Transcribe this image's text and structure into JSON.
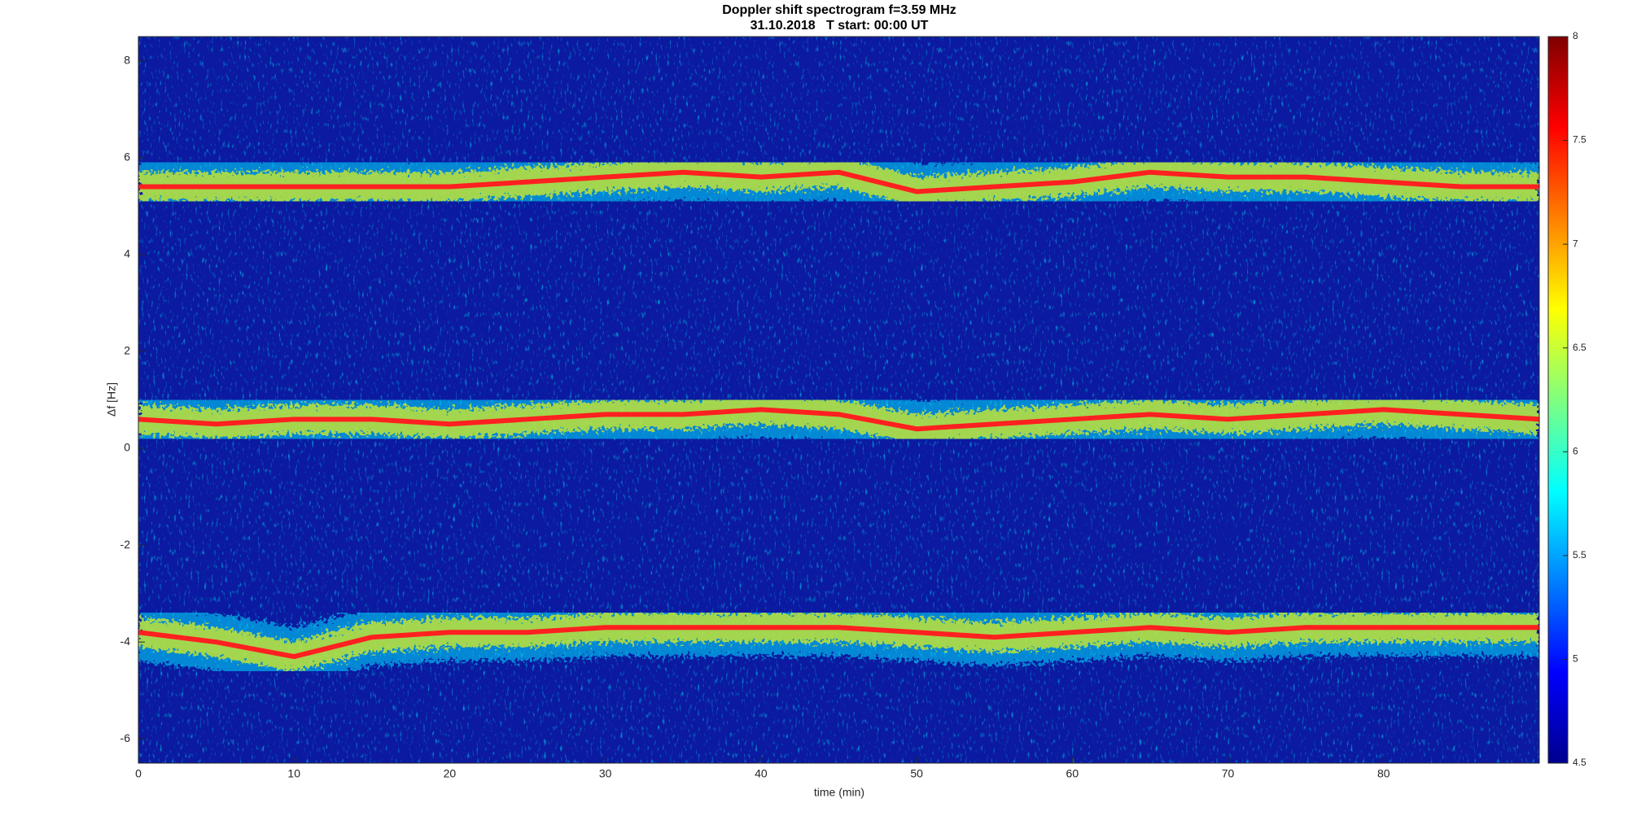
{
  "chart_data": {
    "type": "spectrogram",
    "title": "Doppler shift spectrogram f=3.59 MHz",
    "subtitle": "31.10.2018   T start: 00:00 UT",
    "xlabel": "time (min)",
    "ylabel": "Δf [Hz]",
    "xlim": [
      0,
      90
    ],
    "xticks": [
      0,
      10,
      20,
      30,
      40,
      50,
      60,
      70,
      80
    ],
    "ylim": [
      -6.5,
      8.5
    ],
    "yticks": [
      -6,
      -4,
      -2,
      0,
      2,
      4,
      6,
      8
    ],
    "colormap": "jet",
    "background_color": "#0b1aa0",
    "colorbar": {
      "lim": [
        4.5,
        8
      ],
      "ticks": [
        4.5,
        5,
        5.5,
        6,
        6.5,
        7,
        7.5,
        8
      ]
    },
    "x": [
      0,
      5,
      10,
      15,
      20,
      25,
      30,
      35,
      40,
      45,
      50,
      55,
      60,
      65,
      70,
      75,
      80,
      85,
      90
    ],
    "series": [
      {
        "color": "#ff2020",
        "values": [
          5.4,
          5.4,
          5.4,
          5.4,
          5.4,
          5.5,
          5.6,
          5.7,
          5.6,
          5.7,
          5.3,
          5.4,
          5.5,
          5.7,
          5.6,
          5.6,
          5.5,
          5.4,
          5.4
        ]
      },
      {
        "color": "#ff2020",
        "values": [
          0.6,
          0.5,
          0.6,
          0.6,
          0.5,
          0.6,
          0.7,
          0.7,
          0.8,
          0.7,
          0.4,
          0.5,
          0.6,
          0.7,
          0.6,
          0.7,
          0.8,
          0.7,
          0.6
        ]
      },
      {
        "color": "#ff2020",
        "values": [
          -3.8,
          -4.0,
          -4.3,
          -3.9,
          -3.8,
          -3.8,
          -3.7,
          -3.7,
          -3.7,
          -3.7,
          -3.8,
          -3.9,
          -3.8,
          -3.7,
          -3.8,
          -3.7,
          -3.7,
          -3.7,
          -3.7
        ]
      }
    ]
  }
}
